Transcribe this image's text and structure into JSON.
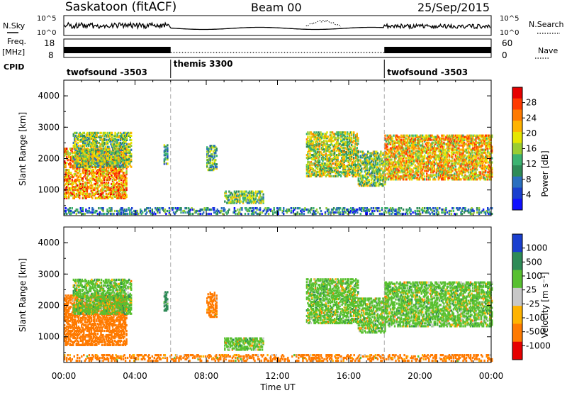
{
  "header": {
    "station": "Saskatoon (fitACF)",
    "beam": "Beam 00",
    "date": "25/Sep/2015"
  },
  "top_panels": {
    "nsky_label": "N.Sky",
    "nsky_ticks": [
      "10^5",
      "10^0"
    ],
    "nsearch_label": "N.Search",
    "freq_label": "Freq.",
    "freq_unit": "[MHz]",
    "freq_ticks": [
      "18",
      "8"
    ],
    "nave_ticks": [
      "60",
      "0"
    ],
    "nave_label": "Nave",
    "cpid_label": "CPID"
  },
  "cpid_segments": [
    {
      "start_hour": 0,
      "end_hour": 6,
      "label": "twofsound -3503"
    },
    {
      "start_hour": 6,
      "end_hour": 18,
      "label": "themis 3300"
    },
    {
      "start_hour": 18,
      "end_hour": 24,
      "label": "twofsound -3503"
    }
  ],
  "power_colorbar": {
    "title": "Power [dB]",
    "ticks": [
      "28",
      "24",
      "20",
      "16",
      "12",
      "8",
      "4"
    ],
    "colors": [
      "#e60000",
      "#ff3a00",
      "#ff7a00",
      "#ffb300",
      "#e6e600",
      "#9acd32",
      "#3cb371",
      "#2e8b57",
      "#2a6fbf",
      "#1a3fcf",
      "#1010ff"
    ]
  },
  "velocity_colorbar": {
    "title": "Velocity [m s⁻¹]",
    "ticks": [
      "1000",
      "500",
      "100",
      "25",
      "-25",
      "-100",
      "-500",
      "-1000"
    ],
    "colors": [
      "#1a3fcf",
      "#2e8b57",
      "#58c030",
      "#c8c8c8",
      "#ffb300",
      "#ff7a00",
      "#e60000"
    ]
  },
  "chart_data": {
    "type": "heatmap",
    "x_label": "Time UT",
    "x_ticks": [
      "00:00",
      "04:00",
      "08:00",
      "12:00",
      "16:00",
      "20:00",
      "00:00"
    ],
    "xlim_hours": [
      0,
      24
    ],
    "y_label": "Slant Range [km]",
    "y_ticks": [
      1000,
      2000,
      3000,
      4000
    ],
    "ylim_km": [
      180,
      4500
    ],
    "panels": [
      "Power [dB]",
      "Velocity [m s⁻¹]"
    ],
    "mode_change_hours": [
      6,
      18
    ],
    "echo_regions": [
      {
        "t0": 0.0,
        "t1": 3.5,
        "r0": 700,
        "r1": 2300,
        "power_db": 22,
        "velocity": -300
      },
      {
        "t0": 0.5,
        "t1": 3.8,
        "r0": 1700,
        "r1": 2800,
        "power_db": 14,
        "velocity": 25
      },
      {
        "t0": 5.6,
        "t1": 5.8,
        "r0": 1800,
        "r1": 2400,
        "power_db": 10,
        "velocity": 100
      },
      {
        "t0": 8.0,
        "t1": 8.6,
        "r0": 1600,
        "r1": 2400,
        "power_db": 12,
        "velocity": -100
      },
      {
        "t0": 9.0,
        "t1": 11.2,
        "r0": 550,
        "r1": 950,
        "power_db": 14,
        "velocity": 25
      },
      {
        "t0": 13.6,
        "t1": 16.5,
        "r0": 1400,
        "r1": 2800,
        "power_db": 16,
        "velocity": 25
      },
      {
        "t0": 16.5,
        "t1": 18.0,
        "r0": 1100,
        "r1": 2200,
        "power_db": 14,
        "velocity": 25
      },
      {
        "t0": 18.0,
        "t1": 24.0,
        "r0": 1300,
        "r1": 2700,
        "power_db": 20,
        "velocity": 25
      },
      {
        "t0": 0.0,
        "t1": 24.0,
        "r0": 200,
        "r1": 400,
        "power_db": 8,
        "velocity": -100
      }
    ]
  }
}
